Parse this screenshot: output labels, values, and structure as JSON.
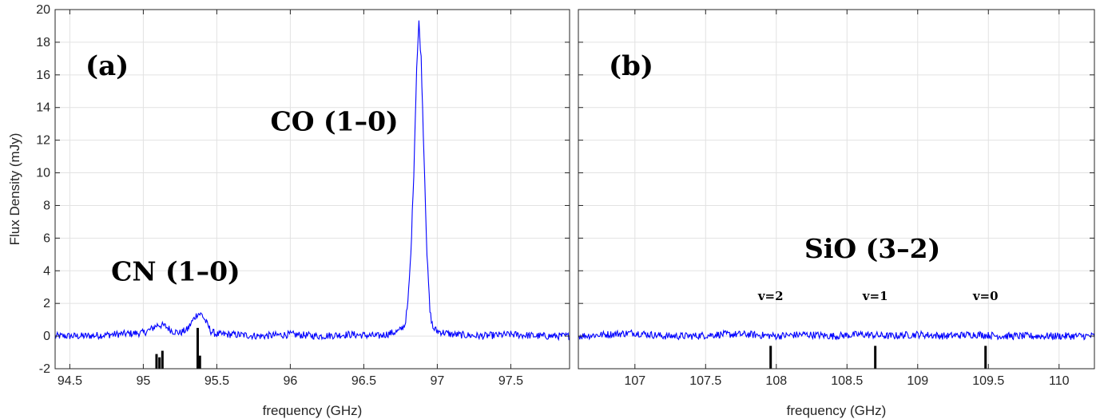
{
  "chart_data": [
    {
      "type": "line",
      "panel_label": "(a)",
      "xlabel": "frequency (GHz)",
      "ylabel": "Flux Density (mJy)",
      "xlim": [
        94.4,
        97.9
      ],
      "ylim": [
        -2,
        20
      ],
      "xticks": [
        94.5,
        95,
        95.5,
        96,
        96.5,
        97,
        97.5
      ],
      "xtick_labels": [
        "94.5",
        "95",
        "95.5",
        "96",
        "96.5",
        "97",
        "97.5"
      ],
      "yticks": [
        -2,
        0,
        2,
        4,
        6,
        8,
        10,
        12,
        14,
        16,
        18,
        20
      ],
      "ytick_labels": [
        "-2",
        "0",
        "2",
        "4",
        "6",
        "8",
        "10",
        "12",
        "14",
        "16",
        "18",
        "20"
      ],
      "grid": true,
      "line_color": "#0000ff",
      "series": [
        {
          "x": [
            94.4,
            94.6,
            94.8,
            95.0,
            95.05,
            95.1,
            95.15,
            95.2,
            95.25,
            95.3,
            95.34,
            95.37,
            95.4,
            95.43,
            95.46,
            95.5,
            95.6,
            95.8,
            96.0,
            96.2,
            96.4,
            96.6,
            96.74,
            96.78,
            96.8,
            96.82,
            96.84,
            96.86,
            96.875,
            96.89,
            96.91,
            96.93,
            96.95,
            96.97,
            97.0,
            97.1,
            97.3,
            97.5,
            97.7,
            97.9
          ],
          "y": [
            0.0,
            0.0,
            0.1,
            0.2,
            0.4,
            0.7,
            0.6,
            0.3,
            0.2,
            0.4,
            1.0,
            1.4,
            1.3,
            0.8,
            0.3,
            0.1,
            0.1,
            0.0,
            0.1,
            0.0,
            0.1,
            0.0,
            0.3,
            0.7,
            2.0,
            5.0,
            10.0,
            16.5,
            19.2,
            17.0,
            11.0,
            5.0,
            1.5,
            0.5,
            0.3,
            0.1,
            0.0,
            0.1,
            0.0,
            0.0
          ]
        }
      ],
      "line_markers": [
        {
          "x": 95.09,
          "y_top": -1.1
        },
        {
          "x": 95.11,
          "y_top": -1.3
        },
        {
          "x": 95.13,
          "y_top": -0.9
        },
        {
          "x": 95.37,
          "y_top": 0.5
        },
        {
          "x": 95.385,
          "y_top": -1.2
        }
      ],
      "annotations": [
        {
          "text": "CN (1–0)",
          "x": 95.22,
          "y": 3.4
        },
        {
          "text": "CO (1–0)",
          "x": 96.3,
          "y": 12.6
        }
      ]
    },
    {
      "type": "line",
      "panel_label": "(b)",
      "xlabel": "frequency (GHz)",
      "ylabel": "",
      "xlim": [
        106.6,
        110.25
      ],
      "ylim": [
        -2,
        20
      ],
      "xticks": [
        107,
        107.5,
        108,
        108.5,
        109,
        109.5,
        110
      ],
      "xtick_labels": [
        "107",
        "107.5",
        "108",
        "108.5",
        "109",
        "109.5",
        "110"
      ],
      "yticks": [
        -2,
        0,
        2,
        4,
        6,
        8,
        10,
        12,
        14,
        16,
        18,
        20
      ],
      "grid": true,
      "line_color": "#0000ff",
      "series": [
        {
          "x": [
            106.6,
            106.8,
            107.0,
            107.2,
            107.4,
            107.6,
            107.8,
            108.0,
            108.2,
            108.4,
            108.6,
            108.8,
            109.0,
            109.2,
            109.4,
            109.6,
            109.8,
            110.0,
            110.25
          ],
          "y": [
            0.0,
            0.1,
            0.2,
            0.0,
            0.0,
            0.1,
            0.1,
            0.0,
            0.1,
            0.0,
            0.1,
            0.0,
            0.1,
            0.0,
            0.1,
            0.0,
            0.0,
            0.0,
            0.0
          ]
        }
      ],
      "line_markers": [
        {
          "x": 107.96,
          "y_top": -0.6
        },
        {
          "x": 108.7,
          "y_top": -0.6
        },
        {
          "x": 109.48,
          "y_top": -0.6
        }
      ],
      "annotations": [
        {
          "text": "SiO (3–2)",
          "x": 108.68,
          "y": 4.8,
          "size": "large"
        },
        {
          "text": "v=2",
          "x": 107.96,
          "y": 2.2,
          "size": "small"
        },
        {
          "text": "v=1",
          "x": 108.7,
          "y": 2.2,
          "size": "small"
        },
        {
          "text": "v=0",
          "x": 109.48,
          "y": 2.2,
          "size": "small"
        }
      ]
    }
  ]
}
